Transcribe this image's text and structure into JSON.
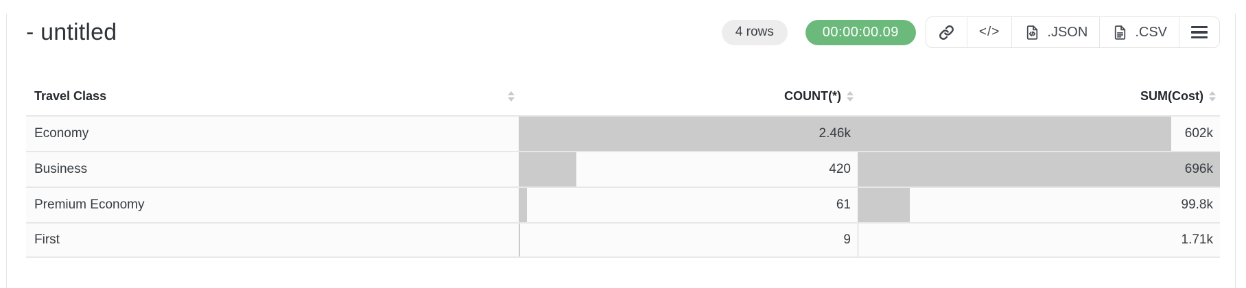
{
  "page": {
    "title": "- untitled"
  },
  "toolbar": {
    "rows_badge": "4 rows",
    "timer_badge": "00:00:00.09",
    "code_glyph": "</>",
    "json_label": ".JSON",
    "csv_label": ".CSV",
    "icons": {
      "link": "chain-link",
      "code": "code-brackets",
      "json": "file-with-code",
      "csv": "file-with-lines",
      "menu": "hamburger"
    }
  },
  "colors": {
    "timer_badge_bg": "#6cb97c",
    "rows_badge_bg": "#ededed",
    "data_bar": "#cbcbcb",
    "row_border": "#e7e7e7",
    "cell_bg": "#fbfbfb"
  },
  "table": {
    "columns": [
      {
        "label": "Travel Class",
        "align": "left"
      },
      {
        "label": "COUNT(*)",
        "align": "right"
      },
      {
        "label": "SUM(Cost)",
        "align": "right"
      }
    ],
    "rows": [
      {
        "travel_class": "Economy",
        "count": "2.46k",
        "sum": "602k",
        "count_bar_pct": 100,
        "sum_bar_pct": 86.5
      },
      {
        "travel_class": "Business",
        "count": "420",
        "sum": "696k",
        "count_bar_pct": 17.1,
        "sum_bar_pct": 100
      },
      {
        "travel_class": "Premium Economy",
        "count": "61",
        "sum": "99.8k",
        "count_bar_pct": 2.5,
        "sum_bar_pct": 14.3
      },
      {
        "travel_class": "First",
        "count": "9",
        "sum": "1.71k",
        "count_bar_pct": 0.4,
        "sum_bar_pct": 0.25
      }
    ]
  }
}
